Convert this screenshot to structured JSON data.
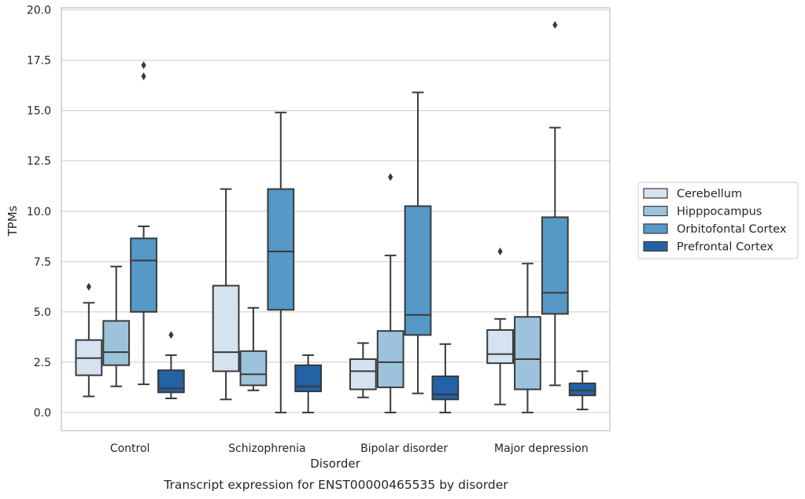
{
  "chart_data": {
    "type": "box",
    "caption": "Transcript expression for ENST00000465535 by disorder",
    "xlabel": "Disorder",
    "ylabel": "TPMs",
    "ylim": [
      -0.9,
      20.1
    ],
    "yticks": [
      "0.0",
      "2.5",
      "5.0",
      "7.5",
      "10.0",
      "12.5",
      "15.0",
      "17.5",
      "20.0"
    ],
    "grid": "horizontal",
    "legend_position": "right",
    "categories": [
      "Control",
      "Schizophrenia",
      "Bipolar disorder",
      "Major depression"
    ],
    "series": [
      {
        "name": "Cerebellum",
        "color": "#d5e2f0",
        "boxes": [
          {
            "whisker_low": 0.8,
            "q1": 1.85,
            "median": 2.7,
            "q3": 3.6,
            "whisker_high": 5.45,
            "outliers": [
              6.25
            ]
          },
          {
            "whisker_low": 0.65,
            "q1": 2.05,
            "median": 3.0,
            "q3": 6.3,
            "whisker_high": 11.1,
            "outliers": []
          },
          {
            "whisker_low": 0.75,
            "q1": 1.15,
            "median": 2.05,
            "q3": 2.65,
            "whisker_high": 3.45,
            "outliers": []
          },
          {
            "whisker_low": 0.4,
            "q1": 2.45,
            "median": 2.9,
            "q3": 4.1,
            "whisker_high": 4.65,
            "outliers": [
              8.0
            ]
          }
        ]
      },
      {
        "name": "Hipppocampus",
        "color": "#9dc3dc",
        "boxes": [
          {
            "whisker_low": 1.3,
            "q1": 2.35,
            "median": 3.0,
            "q3": 4.55,
            "whisker_high": 7.25,
            "outliers": []
          },
          {
            "whisker_low": 1.1,
            "q1": 1.35,
            "median": 1.9,
            "q3": 3.05,
            "whisker_high": 5.2,
            "outliers": []
          },
          {
            "whisker_low": 0.0,
            "q1": 1.25,
            "median": 2.5,
            "q3": 4.05,
            "whisker_high": 7.8,
            "outliers": [
              11.7
            ]
          },
          {
            "whisker_low": 0.0,
            "q1": 1.15,
            "median": 2.65,
            "q3": 4.75,
            "whisker_high": 7.4,
            "outliers": []
          }
        ]
      },
      {
        "name": "Orbitofontal Cortex",
        "color": "#5699c6",
        "boxes": [
          {
            "whisker_low": 1.4,
            "q1": 5.0,
            "median": 7.55,
            "q3": 8.65,
            "whisker_high": 9.25,
            "outliers": [
              16.7,
              17.25
            ]
          },
          {
            "whisker_low": 0.0,
            "q1": 5.1,
            "median": 8.0,
            "q3": 11.1,
            "whisker_high": 14.9,
            "outliers": []
          },
          {
            "whisker_low": 0.95,
            "q1": 3.85,
            "median": 4.85,
            "q3": 10.25,
            "whisker_high": 15.9,
            "outliers": []
          },
          {
            "whisker_low": 1.35,
            "q1": 4.9,
            "median": 5.95,
            "q3": 9.7,
            "whisker_high": 14.15,
            "outliers": [
              19.25
            ]
          }
        ]
      },
      {
        "name": "Prefrontal Cortex",
        "color": "#2262a5",
        "boxes": [
          {
            "whisker_low": 0.7,
            "q1": 1.0,
            "median": 1.2,
            "q3": 2.1,
            "whisker_high": 2.85,
            "outliers": [
              3.85
            ]
          },
          {
            "whisker_low": 0.0,
            "q1": 1.05,
            "median": 1.3,
            "q3": 2.35,
            "whisker_high": 2.85,
            "outliers": []
          },
          {
            "whisker_low": 0.0,
            "q1": 0.65,
            "median": 0.9,
            "q3": 1.8,
            "whisker_high": 3.4,
            "outliers": []
          },
          {
            "whisker_low": 0.15,
            "q1": 0.85,
            "median": 1.1,
            "q3": 1.45,
            "whisker_high": 2.05,
            "outliers": []
          }
        ]
      }
    ]
  }
}
